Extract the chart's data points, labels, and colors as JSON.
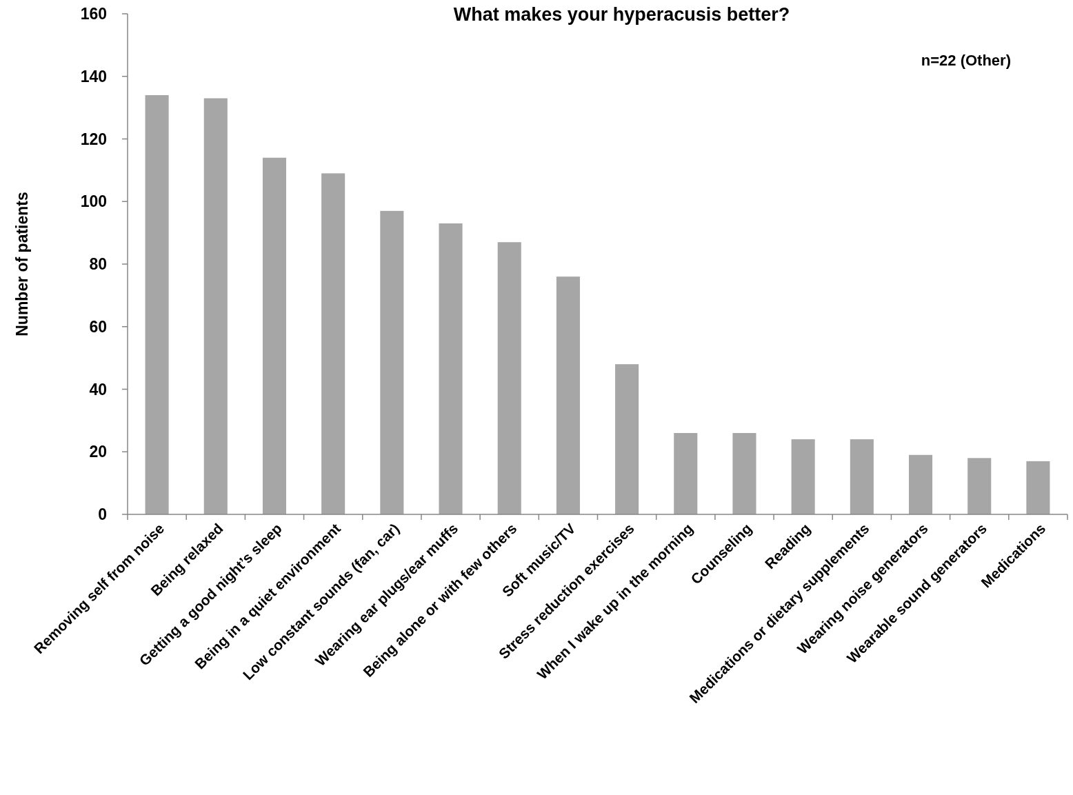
{
  "chart_data": {
    "type": "bar",
    "title": "What makes your hyperacusis better?",
    "ylabel": "Number of patients",
    "annotations": [
      "n=22 (Other)"
    ],
    "categories": [
      "Removing self from noise",
      "Being relaxed",
      "Getting a good night’s sleep",
      "Being in a quiet environment",
      "Low constant sounds (fan, car)",
      "Wearing ear plugs/ear muffs",
      "Being alone or with few others",
      "Soft music/TV",
      "Stress reduction exercises",
      "When I wake up in the morning",
      "Counseling",
      "Reading",
      "Medications or dietary supplements",
      "Wearing noise generators",
      "Wearable sound generators",
      "Medications"
    ],
    "values": [
      134,
      133,
      114,
      109,
      97,
      93,
      87,
      76,
      48,
      26,
      26,
      24,
      24,
      19,
      18,
      17
    ],
    "color": "#a6a6a6",
    "ylim": [
      0,
      160
    ],
    "yticks": [
      0,
      20,
      40,
      60,
      80,
      100,
      120,
      140,
      160
    ],
    "grid": false
  }
}
